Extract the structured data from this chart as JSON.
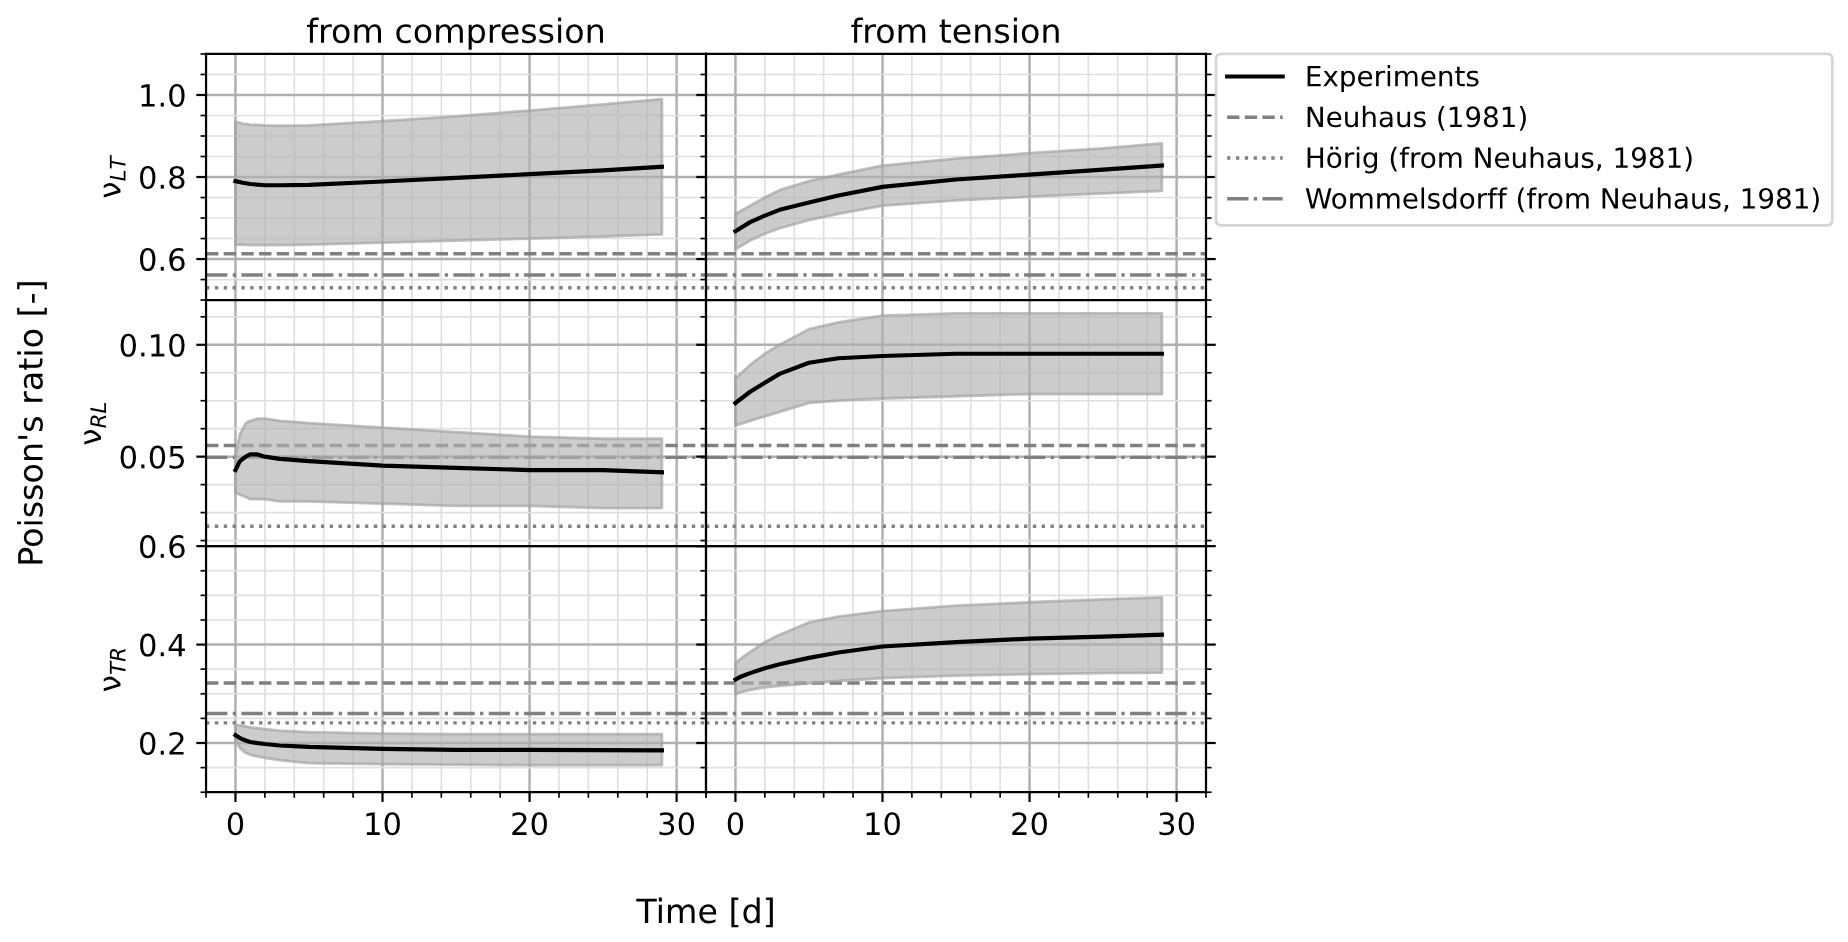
{
  "chart_data": [
    {
      "type": "line",
      "title": "from compression",
      "ylabel": "ν$_{LT}$",
      "annotations": [
        "Poisson's ratio [-]",
        "Time [d]"
      ],
      "xlim": [
        -2,
        32
      ],
      "xticks": [
        0,
        10,
        20,
        30
      ],
      "ylim": [
        0.5,
        1.1
      ],
      "yticks": [
        0.6,
        0.8,
        {
          "value": 1.0,
          "label": "1.0"
        }
      ],
      "grid": true,
      "tick_labels": "y",
      "series": [
        {
          "color": "#000000",
          "x": [
            0,
            0.5,
            1,
            2,
            3,
            5,
            10,
            15,
            20,
            25,
            29
          ],
          "values": [
            0.79,
            0.786,
            0.783,
            0.78,
            0.78,
            0.781,
            0.789,
            0.798,
            0.807,
            0.816,
            0.825
          ],
          "lower": [
            0.635,
            0.635,
            0.634,
            0.634,
            0.634,
            0.635,
            0.64,
            0.645,
            0.65,
            0.655,
            0.66
          ],
          "upper": [
            0.935,
            0.93,
            0.928,
            0.926,
            0.925,
            0.926,
            0.936,
            0.948,
            0.962,
            0.977,
            0.99
          ]
        }
      ],
      "ref_lines": [
        {
          "axis": "y",
          "value": 0.613,
          "color": "#808080",
          "line_style": "dashed"
        },
        {
          "axis": "y",
          "value": 0.53,
          "color": "#808080",
          "line_style": "dotted"
        },
        {
          "axis": "y",
          "value": 0.561,
          "color": "#808080",
          "line_style": "dashdot"
        }
      ]
    },
    {
      "type": "line",
      "title": "from tension",
      "xlim": [
        -2,
        32
      ],
      "xticks": [
        0,
        10,
        20,
        30
      ],
      "ylim": [
        0.5,
        1.1
      ],
      "yticks": [
        0.6,
        0.8,
        1.0
      ],
      "grid": true,
      "tick_labels": false,
      "legend": "right",
      "series": [
        {
          "name": "Experiments",
          "color": "#000000",
          "x": [
            0,
            1,
            2,
            3,
            5,
            7,
            10,
            15,
            20,
            25,
            29
          ],
          "values": [
            0.668,
            0.69,
            0.706,
            0.72,
            0.738,
            0.755,
            0.776,
            0.794,
            0.806,
            0.818,
            0.828
          ],
          "lower": [
            0.624,
            0.645,
            0.662,
            0.675,
            0.695,
            0.71,
            0.73,
            0.743,
            0.752,
            0.76,
            0.766
          ],
          "upper": [
            0.71,
            0.73,
            0.75,
            0.768,
            0.79,
            0.806,
            0.828,
            0.845,
            0.858,
            0.87,
            0.882
          ]
        }
      ],
      "ref_lines": [
        {
          "axis": "y",
          "value": 0.613,
          "label": "Neuhaus (1981)",
          "color": "#808080",
          "line_style": "dashed"
        },
        {
          "axis": "y",
          "value": 0.53,
          "label": "Hörig (from Neuhaus, 1981)",
          "color": "#808080",
          "line_style": "dotted"
        },
        {
          "axis": "y",
          "value": 0.561,
          "label": "Wommelsdorff (from Neuhaus, 1981)",
          "color": "#808080",
          "line_style": "dashdot"
        }
      ]
    },
    {
      "type": "line",
      "ylabel": "ν$_{RL}$",
      "xlim": [
        -2,
        32
      ],
      "xticks": [
        0,
        10,
        20,
        30
      ],
      "ylim": [
        0.01,
        0.12
      ],
      "yticks": [
        0.05,
        {
          "value": 0.1,
          "label": "0.10"
        }
      ],
      "grid": true,
      "tick_labels": "y",
      "series": [
        {
          "color": "#000000",
          "x": [
            0,
            0.3,
            0.7,
            1,
            1.5,
            2,
            3,
            5,
            10,
            15,
            20,
            25,
            29
          ],
          "values": [
            0.044,
            0.048,
            0.05,
            0.051,
            0.051,
            0.05,
            0.049,
            0.048,
            0.046,
            0.045,
            0.044,
            0.044,
            0.043
          ],
          "lower": [
            0.034,
            0.033,
            0.032,
            0.031,
            0.031,
            0.031,
            0.03,
            0.03,
            0.029,
            0.028,
            0.028,
            0.027,
            0.027
          ],
          "upper": [
            0.05,
            0.06,
            0.065,
            0.066,
            0.067,
            0.067,
            0.066,
            0.065,
            0.063,
            0.061,
            0.059,
            0.058,
            0.058
          ]
        }
      ],
      "ref_lines": [
        {
          "axis": "y",
          "value": 0.055,
          "color": "#808080",
          "line_style": "dashed"
        },
        {
          "axis": "y",
          "value": 0.0189,
          "color": "#808080",
          "line_style": "dotted"
        },
        {
          "axis": "y",
          "value": 0.0497,
          "color": "#808080",
          "line_style": "dashdot"
        }
      ]
    },
    {
      "type": "line",
      "xlim": [
        -2,
        32
      ],
      "xticks": [
        0,
        10,
        20,
        30
      ],
      "ylim": [
        0.01,
        0.12
      ],
      "yticks": [
        0.05,
        0.1
      ],
      "grid": true,
      "tick_labels": false,
      "series": [
        {
          "color": "#000000",
          "x": [
            0,
            1,
            2,
            3,
            5,
            7,
            10,
            15,
            20,
            29
          ],
          "values": [
            0.074,
            0.079,
            0.083,
            0.087,
            0.092,
            0.094,
            0.095,
            0.096,
            0.096,
            0.096
          ],
          "lower": [
            0.064,
            0.066,
            0.068,
            0.07,
            0.074,
            0.075,
            0.076,
            0.077,
            0.078,
            0.078
          ],
          "upper": [
            0.085,
            0.091,
            0.096,
            0.1,
            0.107,
            0.11,
            0.113,
            0.114,
            0.114,
            0.114
          ]
        }
      ],
      "ref_lines": [
        {
          "axis": "y",
          "value": 0.055,
          "color": "#808080",
          "line_style": "dashed"
        },
        {
          "axis": "y",
          "value": 0.0189,
          "color": "#808080",
          "line_style": "dotted"
        },
        {
          "axis": "y",
          "value": 0.0497,
          "color": "#808080",
          "line_style": "dashdot"
        }
      ]
    },
    {
      "type": "line",
      "ylabel": "ν$_{TR}$",
      "xlim": [
        -2,
        32
      ],
      "xticks": [
        0,
        10,
        20,
        30
      ],
      "ylim": [
        0.1,
        0.6
      ],
      "yticks": [
        0.2,
        0.4,
        0.6
      ],
      "grid": true,
      "series": [
        {
          "color": "#000000",
          "x": [
            0,
            0.3,
            0.7,
            1,
            2,
            3,
            5,
            10,
            15,
            20,
            29
          ],
          "values": [
            0.216,
            0.21,
            0.205,
            0.202,
            0.198,
            0.195,
            0.192,
            0.188,
            0.186,
            0.186,
            0.185
          ],
          "lower": [
            0.205,
            0.19,
            0.18,
            0.176,
            0.17,
            0.165,
            0.159,
            0.157,
            0.156,
            0.155,
            0.155
          ],
          "upper": [
            0.237,
            0.236,
            0.234,
            0.232,
            0.228,
            0.225,
            0.222,
            0.219,
            0.218,
            0.218,
            0.218
          ]
        }
      ],
      "ref_lines": [
        {
          "axis": "y",
          "value": 0.322,
          "color": "#808080",
          "line_style": "dashed"
        },
        {
          "axis": "y",
          "value": 0.241,
          "color": "#808080",
          "line_style": "dotted"
        },
        {
          "axis": "y",
          "value": 0.26,
          "color": "#808080",
          "line_style": "dashdot"
        }
      ]
    },
    {
      "type": "line",
      "xlim": [
        -2,
        32
      ],
      "xticks": [
        0,
        10,
        20,
        30
      ],
      "ylim": [
        0.1,
        0.6
      ],
      "yticks": [
        0.2,
        0.4,
        0.6
      ],
      "grid": true,
      "tick_labels": "x",
      "series": [
        {
          "color": "#000000",
          "x": [
            0,
            0.3,
            1,
            2,
            3,
            5,
            7,
            10,
            15,
            20,
            25,
            29
          ],
          "values": [
            0.329,
            0.334,
            0.342,
            0.352,
            0.36,
            0.373,
            0.384,
            0.396,
            0.405,
            0.412,
            0.416,
            0.42
          ],
          "lower": [
            0.298,
            0.303,
            0.308,
            0.313,
            0.316,
            0.321,
            0.326,
            0.332,
            0.337,
            0.34,
            0.342,
            0.343
          ],
          "upper": [
            0.362,
            0.37,
            0.385,
            0.405,
            0.42,
            0.445,
            0.457,
            0.468,
            0.479,
            0.486,
            0.492,
            0.496
          ]
        }
      ],
      "ref_lines": [
        {
          "axis": "y",
          "value": 0.322,
          "color": "#808080",
          "line_style": "dashed"
        },
        {
          "axis": "y",
          "value": 0.241,
          "color": "#808080",
          "line_style": "dotted"
        },
        {
          "axis": "y",
          "value": 0.26,
          "color": "#808080",
          "line_style": "dashdot"
        }
      ]
    }
  ]
}
